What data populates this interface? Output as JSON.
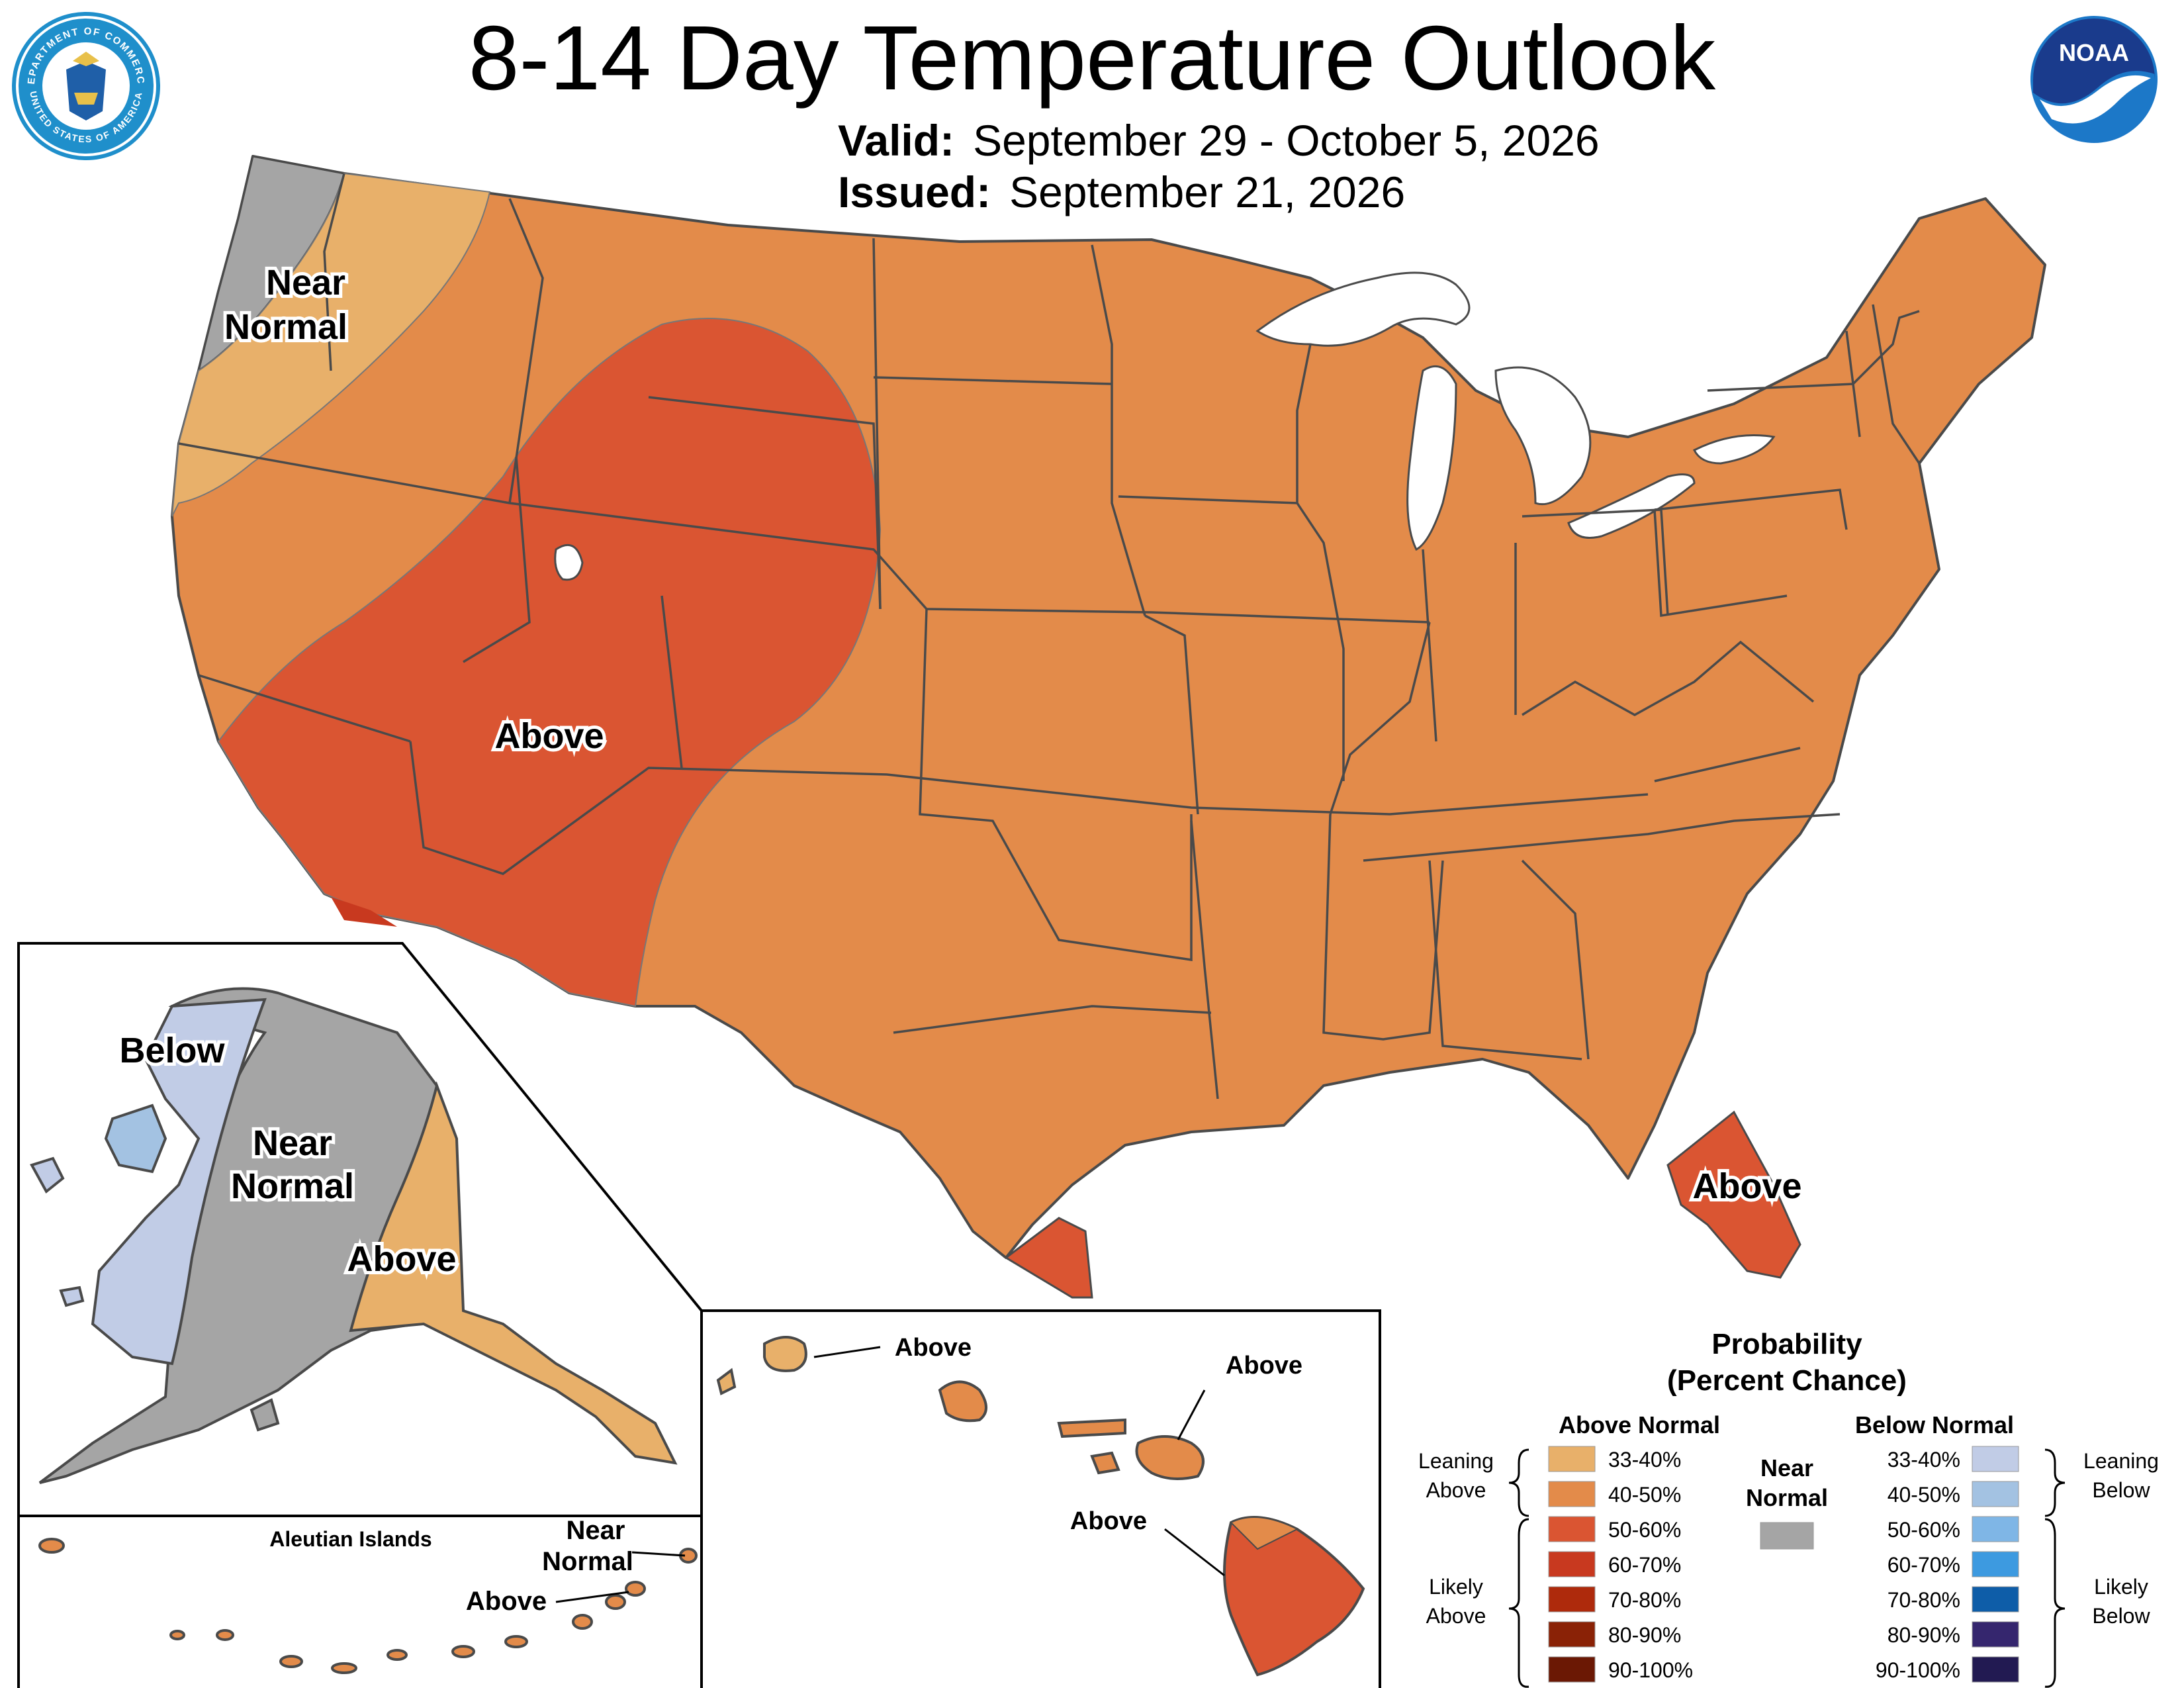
{
  "header": {
    "title": "8-14 Day Temperature Outlook",
    "valid_label": "Valid:",
    "valid_value": "September 29 - October 5, 2026",
    "issued_label": "Issued:",
    "issued_value": "September 21, 2026"
  },
  "logos": {
    "doc_text_top": "DEPARTMENT OF COMMERCE",
    "doc_text_bottom": "UNITED STATES OF AMERICA",
    "noaa_text": "NOAA"
  },
  "map": {
    "conus_labels": [
      "Near",
      "Normal",
      "Above",
      "Above"
    ],
    "alaska_labels": [
      "Below",
      "Near",
      "Normal",
      "Above"
    ],
    "aleutian_title": "Aleutian Islands",
    "aleutian_labels": [
      "Near",
      "Normal",
      "Above"
    ],
    "hawaii_labels": [
      "Above",
      "Above",
      "Above"
    ]
  },
  "legend": {
    "title_line1": "Probability",
    "title_line2": "(Percent Chance)",
    "above_header": "Above Normal",
    "below_header": "Below Normal",
    "near_label_1": "Near",
    "near_label_2": "Normal",
    "leaning_above": [
      "Leaning",
      "Above"
    ],
    "likely_above": [
      "Likely",
      "Above"
    ],
    "leaning_below": [
      "Leaning",
      "Below"
    ],
    "likely_below": [
      "Likely",
      "Below"
    ],
    "above_ranges": [
      "33-40%",
      "40-50%",
      "50-60%",
      "60-70%",
      "70-80%",
      "80-90%",
      "90-100%"
    ],
    "below_ranges": [
      "33-40%",
      "40-50%",
      "50-60%",
      "60-70%",
      "70-80%",
      "80-90%",
      "90-100%"
    ]
  },
  "colors": {
    "above_33_40": "#E8B06A",
    "above_40_50": "#E38B4A",
    "above_50_60": "#DA5532",
    "above_60_70": "#C8391F",
    "above_70_80": "#AE2A0C",
    "above_80_90": "#8A2206",
    "above_90_100": "#6B1804",
    "near_normal": "#A5A5A5",
    "below_33_40": "#C1CCE6",
    "below_40_50": "#A3C2E2",
    "below_50_60": "#7FB6E6",
    "below_60_70": "#3D9AE0",
    "below_70_80": "#0E5DA8",
    "below_80_90": "#35266E",
    "below_90_100": "#221A52",
    "border": "#4A4A4A"
  }
}
